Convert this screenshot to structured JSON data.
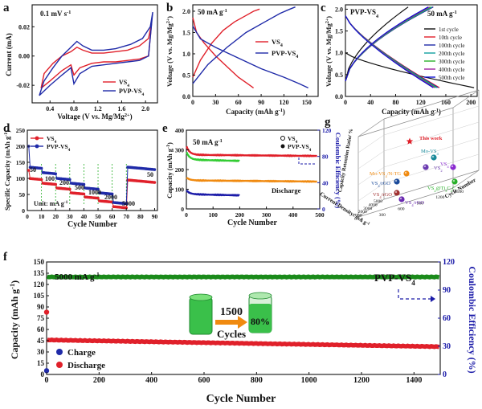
{
  "figure": {
    "colors": {
      "red": "#e0202a",
      "blue": "#1f2aa8",
      "black": "#111111",
      "green": "#1a8a1a",
      "orange": "#f08a10",
      "lightgreen": "#33cc33",
      "navy": "#1a1aa8",
      "royal": "#2a3ad8",
      "axisblue": "#1a1aa8"
    }
  },
  "chart_data": [
    {
      "id": "a",
      "type": "line",
      "panel_label": "a",
      "annotation": "0.1 mV s",
      "annotation_sup": "-1",
      "xlabel": "Voltage (V vs. Mg/Mg",
      "xlabel_sup": "2+",
      "xlabel_end": ")",
      "ylabel": "Current (mA)",
      "xlim": [
        0.1,
        2.2
      ],
      "ylim": [
        -0.032,
        0.035
      ],
      "xticks": [
        "0.4",
        "0.8",
        "1.2",
        "1.6",
        "2.0"
      ],
      "yticks": [
        "-0.02",
        "0.00",
        "0.02"
      ],
      "legend": [
        "VS",
        "PVP-VS"
      ],
      "legend_sub": "4",
      "series": [
        {
          "name": "VS4",
          "color": "red",
          "x": [
            0.25,
            0.4,
            0.6,
            0.75,
            0.8,
            0.9,
            1.1,
            1.3,
            1.5,
            1.7,
            1.9,
            2.05,
            2.1,
            2.05,
            1.9,
            1.7,
            1.5,
            1.3,
            1.1,
            0.95,
            0.85,
            0.75,
            0.6,
            0.45,
            0.3,
            0.25
          ],
          "y": [
            -0.022,
            -0.017,
            -0.01,
            -0.006,
            -0.013,
            -0.008,
            -0.005,
            -0.004,
            -0.004,
            -0.003,
            -0.002,
            0.0,
            0.022,
            0.012,
            0.007,
            0.004,
            0.003,
            0.002,
            0.002,
            0.004,
            0.006,
            0.003,
            0.0,
            -0.005,
            -0.012,
            -0.022
          ]
        },
        {
          "name": "PVP-VS4",
          "color": "blue",
          "x": [
            0.22,
            0.4,
            0.6,
            0.75,
            0.8,
            0.9,
            1.1,
            1.3,
            1.5,
            1.7,
            1.9,
            2.05,
            2.12,
            2.08,
            1.95,
            1.75,
            1.5,
            1.3,
            1.1,
            0.95,
            0.85,
            0.75,
            0.6,
            0.45,
            0.3,
            0.22
          ],
          "y": [
            -0.027,
            -0.02,
            -0.013,
            -0.008,
            -0.019,
            -0.012,
            -0.007,
            -0.006,
            -0.005,
            -0.004,
            -0.003,
            0.0,
            0.03,
            0.02,
            0.012,
            0.008,
            0.005,
            0.004,
            0.004,
            0.007,
            0.01,
            0.006,
            0.0,
            -0.008,
            -0.017,
            -0.027
          ]
        }
      ]
    },
    {
      "id": "b",
      "type": "line",
      "panel_label": "b",
      "annotation": "50 mA g",
      "annotation_sup": "-1",
      "xlabel": "Capacity (mAh g",
      "xlabel_sup": "-1",
      "xlabel_end": ")",
      "ylabel": "Voltage (V vs. Mg/Mg",
      "ylabel_sup": "2+",
      "ylabel_end": ")",
      "xlim": [
        0,
        165
      ],
      "ylim": [
        0,
        2.15
      ],
      "xticks": [
        "0",
        "30",
        "60",
        "90",
        "120",
        "150"
      ],
      "yticks": [
        "0.0",
        "0.5",
        "1.0",
        "1.5",
        "2.0"
      ],
      "legend": [
        "VS",
        "PVP-VS"
      ],
      "legend_sub": "4",
      "series": [
        {
          "name": "VS4 discharge",
          "color": "red",
          "x": [
            0,
            5,
            15,
            30,
            45,
            60,
            72,
            80
          ],
          "y": [
            1.85,
            1.5,
            1.25,
            0.95,
            0.7,
            0.45,
            0.3,
            0.2
          ]
        },
        {
          "name": "VS4 charge",
          "color": "red",
          "x": [
            0,
            10,
            25,
            40,
            55,
            70,
            80,
            88
          ],
          "y": [
            0.45,
            0.85,
            1.25,
            1.55,
            1.75,
            1.9,
            2.0,
            2.05
          ]
        },
        {
          "name": "PVP-VS4 discharge",
          "color": "blue",
          "x": [
            0,
            10,
            30,
            60,
            90,
            120,
            140,
            152
          ],
          "y": [
            1.65,
            1.35,
            1.15,
            0.9,
            0.65,
            0.45,
            0.3,
            0.2
          ]
        },
        {
          "name": "PVP-VS4 charge",
          "color": "blue",
          "x": [
            0,
            20,
            45,
            70,
            95,
            115,
            128,
            135
          ],
          "y": [
            0.3,
            0.75,
            1.15,
            1.5,
            1.75,
            1.95,
            2.05,
            2.1
          ]
        }
      ]
    },
    {
      "id": "c",
      "type": "line",
      "panel_label": "c",
      "annotation_left": "PVP-VS",
      "annotation_left_sub": "4",
      "annotation": "50 mA g",
      "annotation_sup": "-1",
      "xlabel": "Capacity (mAh g",
      "xlabel_sup": "-1",
      "xlabel_end": ")",
      "ylabel": "Voltage (V vs. Mg/Mg",
      "ylabel_sup": "2+",
      "ylabel_end": ")",
      "xlim": [
        0,
        210
      ],
      "ylim": [
        0,
        2.1
      ],
      "xticks": [
        "0",
        "40",
        "80",
        "120",
        "160",
        "200"
      ],
      "yticks": [
        "0.0",
        "0.5",
        "1.0",
        "1.5",
        "2.0"
      ],
      "legend": [
        "1st cycle",
        "10th cycle",
        "100th cycle",
        "200th cycle",
        "300th cycle",
        "400th cycle",
        "500th cycle"
      ],
      "series": [
        {
          "name": "1st cycle",
          "color": "#111111",
          "discharge_end": 205,
          "charge_end": 100
        },
        {
          "name": "10th cycle",
          "color": "#e0202a",
          "discharge_end": 150,
          "charge_end": 140
        },
        {
          "name": "100th cycle",
          "color": "#1f2aa8",
          "discharge_end": 148,
          "charge_end": 140
        },
        {
          "name": "200th cycle",
          "color": "#10a0a0",
          "discharge_end": 146,
          "charge_end": 138
        },
        {
          "name": "300th cycle",
          "color": "#2ab02a",
          "discharge_end": 144,
          "charge_end": 136
        },
        {
          "name": "400th cycle",
          "color": "#a020a0",
          "discharge_end": 142,
          "charge_end": 134
        },
        {
          "name": "500th cycle",
          "color": "#1010d0",
          "discharge_end": 140,
          "charge_end": 132
        }
      ]
    },
    {
      "id": "d",
      "type": "scatter",
      "panel_label": "d",
      "xlabel": "Cycle Number",
      "ylabel": "Specific Capacity (mAh g",
      "ylabel_sup": "-1",
      "ylabel_end": ")",
      "xlim": [
        0,
        92
      ],
      "ylim": [
        0,
        250
      ],
      "xticks": [
        "0",
        "10",
        "20",
        "30",
        "40",
        "50",
        "60",
        "70",
        "80",
        "90"
      ],
      "yticks": [
        "0",
        "50",
        "100",
        "150",
        "200",
        "250"
      ],
      "legend": [
        "VS",
        "PVP-VS"
      ],
      "legend_sub": "4",
      "rate_labels": [
        "50",
        "100",
        "200",
        "500",
        "1000",
        "2000",
        "5000",
        "50"
      ],
      "unit_label": "Unit: mA g",
      "unit_sup": "-1",
      "series": [
        {
          "name": "VS4",
          "color": "red",
          "segments": [
            [
              1,
              10,
              100
            ],
            [
              11,
              20,
              85
            ],
            [
              21,
              30,
              70
            ],
            [
              31,
              40,
              55
            ],
            [
              41,
              50,
              42
            ],
            [
              51,
              60,
              30
            ],
            [
              61,
              70,
              12
            ],
            [
              71,
              90,
              95
            ]
          ],
          "first": 125
        },
        {
          "name": "PVP-VS4",
          "color": "blue",
          "segments": [
            [
              1,
              10,
              135
            ],
            [
              11,
              20,
              118
            ],
            [
              21,
              30,
              100
            ],
            [
              31,
              40,
              85
            ],
            [
              41,
              50,
              70
            ],
            [
              51,
              60,
              55
            ],
            [
              61,
              70,
              25
            ],
            [
              71,
              90,
              135
            ]
          ],
          "first": 200
        }
      ]
    },
    {
      "id": "e",
      "type": "scatter",
      "panel_label": "e",
      "annotation": "50 mA g",
      "annotation_sup": "-1",
      "xlabel": "Cycle Number",
      "ylabel": "Capacity (mAh g",
      "ylabel_sup": "-1",
      "ylabel_end": ")",
      "y2label": "Coulombic Efficiency (%)",
      "xlim": [
        0,
        500
      ],
      "ylim": [
        0,
        400
      ],
      "y2lim": [
        0,
        120
      ],
      "xticks": [
        "0",
        "100",
        "200",
        "300",
        "400",
        "500"
      ],
      "yticks": [
        "0",
        "100",
        "200",
        "300",
        "400"
      ],
      "y2ticks": [
        "0",
        "40",
        "80",
        "120"
      ],
      "legend": [
        "VS",
        "PVP-VS"
      ],
      "legend_sub": "4",
      "note": "Discharge",
      "series": [
        {
          "name": "PVP-VS4 capacity",
          "color": "red",
          "x_end": 490,
          "start": 320,
          "plateau": 275
        },
        {
          "name": "VS4 capacity",
          "color": "lightgreen",
          "x_end": 200,
          "start": 290,
          "plateau": 250
        },
        {
          "name": "PVP-VS4 CE",
          "color": "orange",
          "x_end": 490,
          "start": 160,
          "plateau": 145
        },
        {
          "name": "VS4 CE",
          "color": "navy",
          "x_end": 200,
          "start": 95,
          "plateau": 75
        }
      ]
    },
    {
      "id": "g",
      "type": "scatter",
      "panel_label": "g",
      "xlabel": "Current Density/ mA g",
      "xlabel_sup": "-1",
      "ylabel": "Capacity Retention Ratio/ %",
      "zlabel": "Cycle Number",
      "xticks": [
        "0",
        "1000",
        "2000",
        "3000",
        "4000",
        "5000"
      ],
      "zticks": [
        "0",
        "300",
        "600",
        "900",
        "1200",
        "1500"
      ],
      "points": [
        {
          "label": "This work",
          "color": "#e0202a",
          "marker": "star"
        },
        {
          "label": "Mo-VS",
          "sub": "4",
          "color": "#1a8a9a"
        },
        {
          "label": "VS",
          "sub": "4",
          "color": "#8a2ad0"
        },
        {
          "label": "VS",
          "sub": "2",
          "color": "#6a3ab0"
        },
        {
          "label": "Mo-VS",
          "sub": "4",
          "tail": "/N-TG",
          "color": "#f08a10"
        },
        {
          "label": "VS",
          "sub": "4",
          "tail": "/rGO",
          "color": "#1a4a9a"
        },
        {
          "label": "VS",
          "sub": "4",
          "tail": "/rGO",
          "color": "#a03030"
        },
        {
          "label": "VS",
          "sub": "4",
          "tail": "/rGO",
          "color": "#6a2ab0"
        },
        {
          "label": "VS",
          "sub": "2",
          "tail": "@Ti",
          "tail_sub": "3",
          "tail2": "C",
          "tail2_sub": "2",
          "tail3": "C",
          "color": "#2ab02a"
        }
      ]
    },
    {
      "id": "f",
      "type": "scatter",
      "panel_label": "f",
      "annotation": "5000 mA g",
      "annotation_sup": "-1",
      "annotation_right": "PVP-VS",
      "annotation_right_sub": "4",
      "xlabel": "Cycle Number",
      "ylabel": "Capacity (mAh g",
      "ylabel_sup": "-1",
      "ylabel_end": ")",
      "y2label": "Coulombic Efficiency (%)",
      "xlim": [
        0,
        1500
      ],
      "ylim": [
        0,
        150
      ],
      "y2lim": [
        0,
        120
      ],
      "xticks": [
        "0",
        "200",
        "400",
        "600",
        "800",
        "1000",
        "1200",
        "1400"
      ],
      "yticks": [
        "0",
        "15",
        "30",
        "45",
        "60",
        "75",
        "90",
        "105",
        "120",
        "135",
        "150"
      ],
      "y2ticks": [
        "0",
        "30",
        "60",
        "90",
        "120"
      ],
      "legend": [
        "Charge",
        "Discharge"
      ],
      "inset_number": "1500",
      "inset_word": "Cycles",
      "inset_pct": "80%",
      "series": [
        {
          "name": "Charge capacity",
          "color": "green",
          "y_start": 130,
          "y_end": 130
        },
        {
          "name": "Discharge capacity",
          "color": "red",
          "y_start": 46,
          "y_end": 37
        },
        {
          "name": "first points",
          "charge_first": 5,
          "discharge_first": 83
        }
      ]
    }
  ]
}
